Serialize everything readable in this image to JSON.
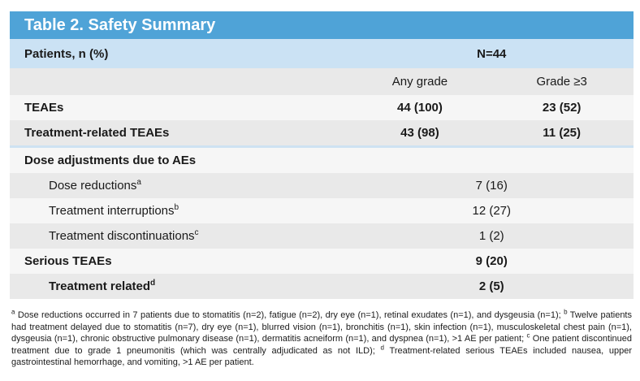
{
  "title": "Table 2. Safety Summary",
  "patients": {
    "label": "Patients, n (%)",
    "n": "N=44"
  },
  "columns": {
    "col1": "Any grade",
    "col2": "Grade ≥3"
  },
  "rows": [
    {
      "label": "TEAEs",
      "sup": "",
      "bold": true,
      "indent": false,
      "shade": "light",
      "values": [
        "44 (100)",
        "23 (52)"
      ],
      "divider_below": false
    },
    {
      "label": "Treatment-related TEAEs",
      "sup": "",
      "bold": true,
      "indent": false,
      "shade": "dark",
      "values": [
        "43 (98)",
        "11 (25)"
      ],
      "divider_below": true
    },
    {
      "label": "Dose adjustments due to AEs",
      "sup": "",
      "bold": true,
      "indent": false,
      "shade": "light",
      "values": [],
      "divider_below": false
    },
    {
      "label": "Dose reductions",
      "sup": "a",
      "bold": false,
      "indent": true,
      "shade": "dark",
      "values": [
        "7 (16)"
      ],
      "divider_below": false
    },
    {
      "label": "Treatment interruptions",
      "sup": "b",
      "bold": false,
      "indent": true,
      "shade": "light",
      "values": [
        "12 (27)"
      ],
      "divider_below": false
    },
    {
      "label": "Treatment discontinuations",
      "sup": "c",
      "bold": false,
      "indent": true,
      "shade": "dark",
      "values": [
        "1 (2)"
      ],
      "divider_below": false
    },
    {
      "label": "Serious TEAEs",
      "sup": "",
      "bold": true,
      "indent": false,
      "shade": "light",
      "values": [
        "9 (20)"
      ],
      "divider_below": false
    },
    {
      "label": "Treatment related",
      "sup": "d",
      "bold": true,
      "indent": true,
      "shade": "dark",
      "values": [
        "2 (5)"
      ],
      "divider_below": false
    }
  ],
  "footnotes": [
    {
      "sup": "a",
      "text": " Dose reductions occurred in 7 patients due to stomatitis (n=2), fatigue (n=2), dry eye (n=1), retinal exudates (n=1), and dysgeusia (n=1); "
    },
    {
      "sup": "b",
      "text": " Twelve patients had treatment delayed due to stomatitis (n=7), dry eye (n=1), blurred vision (n=1), bronchitis (n=1), skin infection (n=1), musculoskeletal chest pain (n=1), dysgeusia (n=1), chronic obstructive pulmonary disease (n=1), dermatitis acneiform (n=1), and dyspnea (n=1), >1 AE per patient; "
    },
    {
      "sup": "c",
      "text": " One patient discontinued treatment due to grade 1 pneumonitis (which was centrally adjudicated as not ILD); "
    },
    {
      "sup": "d",
      "text": " Treatment-related serious TEAEs included nausea, upper gastrointestinal hemorrhage, and vomiting, >1 AE per patient."
    }
  ],
  "colors": {
    "header_blue": "#4FA3D7",
    "patients_row_blue": "#CBE2F4",
    "divider_blue": "#CEE2F2",
    "row_gray": "#E9E9E9",
    "row_light": "#F6F6F6",
    "title_text": "#FFFFFF",
    "body_text": "#1A1A1A"
  }
}
